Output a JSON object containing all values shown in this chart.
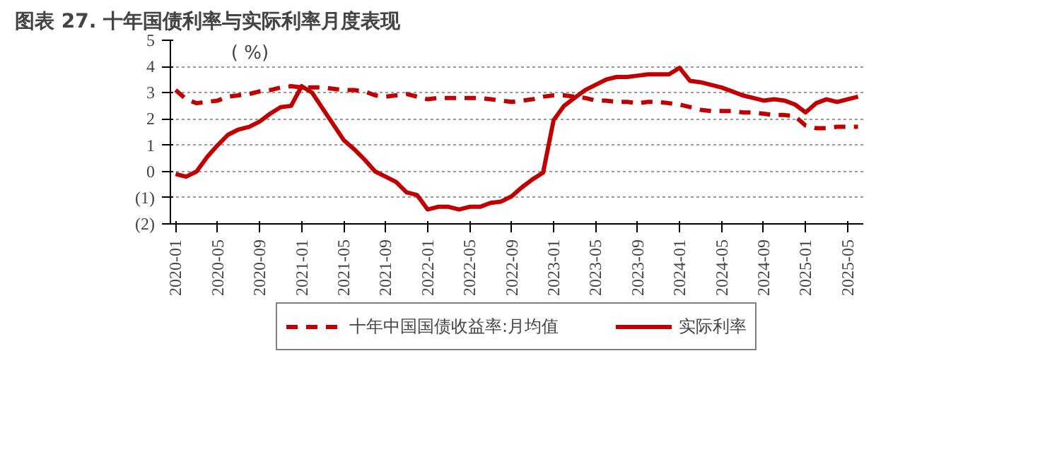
{
  "chart_data": {
    "type": "line",
    "title": "图表 27. 十年国债利率与实际利率月度表现",
    "ylabel": "( %)",
    "categories": [
      "2020-01",
      null,
      null,
      null,
      "2020-05",
      null,
      null,
      null,
      "2020-09",
      null,
      null,
      null,
      "2021-01",
      null,
      null,
      null,
      "2021-05",
      null,
      null,
      null,
      "2021-09",
      null,
      null,
      null,
      "2022-01",
      null,
      null,
      null,
      "2022-05",
      null,
      null,
      null,
      "2022-09",
      null,
      null,
      null,
      "2023-01",
      null,
      null,
      null,
      "2023-05",
      null,
      null,
      null,
      "2023-09",
      null,
      null,
      null,
      "2024-01",
      null,
      null,
      null,
      "2024-05",
      null,
      null,
      null,
      "2024-09",
      null,
      null,
      null,
      "2025-01",
      null,
      null,
      null,
      "2025-05",
      null
    ],
    "series": [
      {
        "name": "十年中国国债收益率:月均值",
        "color": "#c00000",
        "line_style": "dashed",
        "values": [
          3.1,
          2.75,
          2.6,
          2.65,
          2.7,
          2.85,
          2.9,
          2.95,
          3.05,
          3.1,
          3.2,
          3.25,
          3.2,
          3.2,
          3.2,
          3.15,
          3.1,
          3.1,
          3.05,
          2.9,
          2.85,
          2.9,
          2.95,
          2.85,
          2.75,
          2.8,
          2.8,
          2.8,
          2.8,
          2.8,
          2.75,
          2.7,
          2.65,
          2.7,
          2.75,
          2.85,
          2.9,
          2.9,
          2.85,
          2.8,
          2.7,
          2.7,
          2.65,
          2.65,
          2.6,
          2.65,
          2.65,
          2.6,
          2.55,
          2.45,
          2.35,
          2.3,
          2.3,
          2.3,
          2.25,
          2.25,
          2.2,
          2.15,
          2.15,
          2.1,
          1.75,
          1.65,
          1.65,
          1.7,
          1.7,
          1.7
        ]
      },
      {
        "name": "实际利率",
        "color": "#c00000",
        "line_style": "solid",
        "values": [
          -0.1,
          -0.2,
          0.0,
          0.55,
          1.0,
          1.4,
          1.6,
          1.7,
          1.9,
          2.2,
          2.45,
          2.5,
          3.25,
          3.0,
          2.4,
          1.8,
          1.2,
          0.85,
          0.45,
          0.0,
          -0.2,
          -0.4,
          -0.8,
          -0.9,
          -1.45,
          -1.35,
          -1.35,
          -1.45,
          -1.35,
          -1.35,
          -1.2,
          -1.15,
          -0.95,
          -0.6,
          -0.3,
          -0.05,
          1.95,
          2.5,
          2.8,
          3.1,
          3.3,
          3.5,
          3.6,
          3.6,
          3.65,
          3.7,
          3.7,
          3.7,
          3.95,
          3.45,
          3.4,
          3.3,
          3.2,
          3.05,
          2.9,
          2.8,
          2.7,
          2.75,
          2.7,
          2.55,
          2.25,
          2.6,
          2.75,
          2.65,
          2.75,
          2.85
        ]
      }
    ],
    "ylim": [
      -2,
      5
    ],
    "yticks": [
      {
        "value": -2,
        "label": "(2)"
      },
      {
        "value": -1,
        "label": "(1)"
      },
      0,
      1,
      2,
      3,
      4,
      5
    ],
    "grid": "y",
    "legend": "bottom",
    "marker": "none"
  }
}
